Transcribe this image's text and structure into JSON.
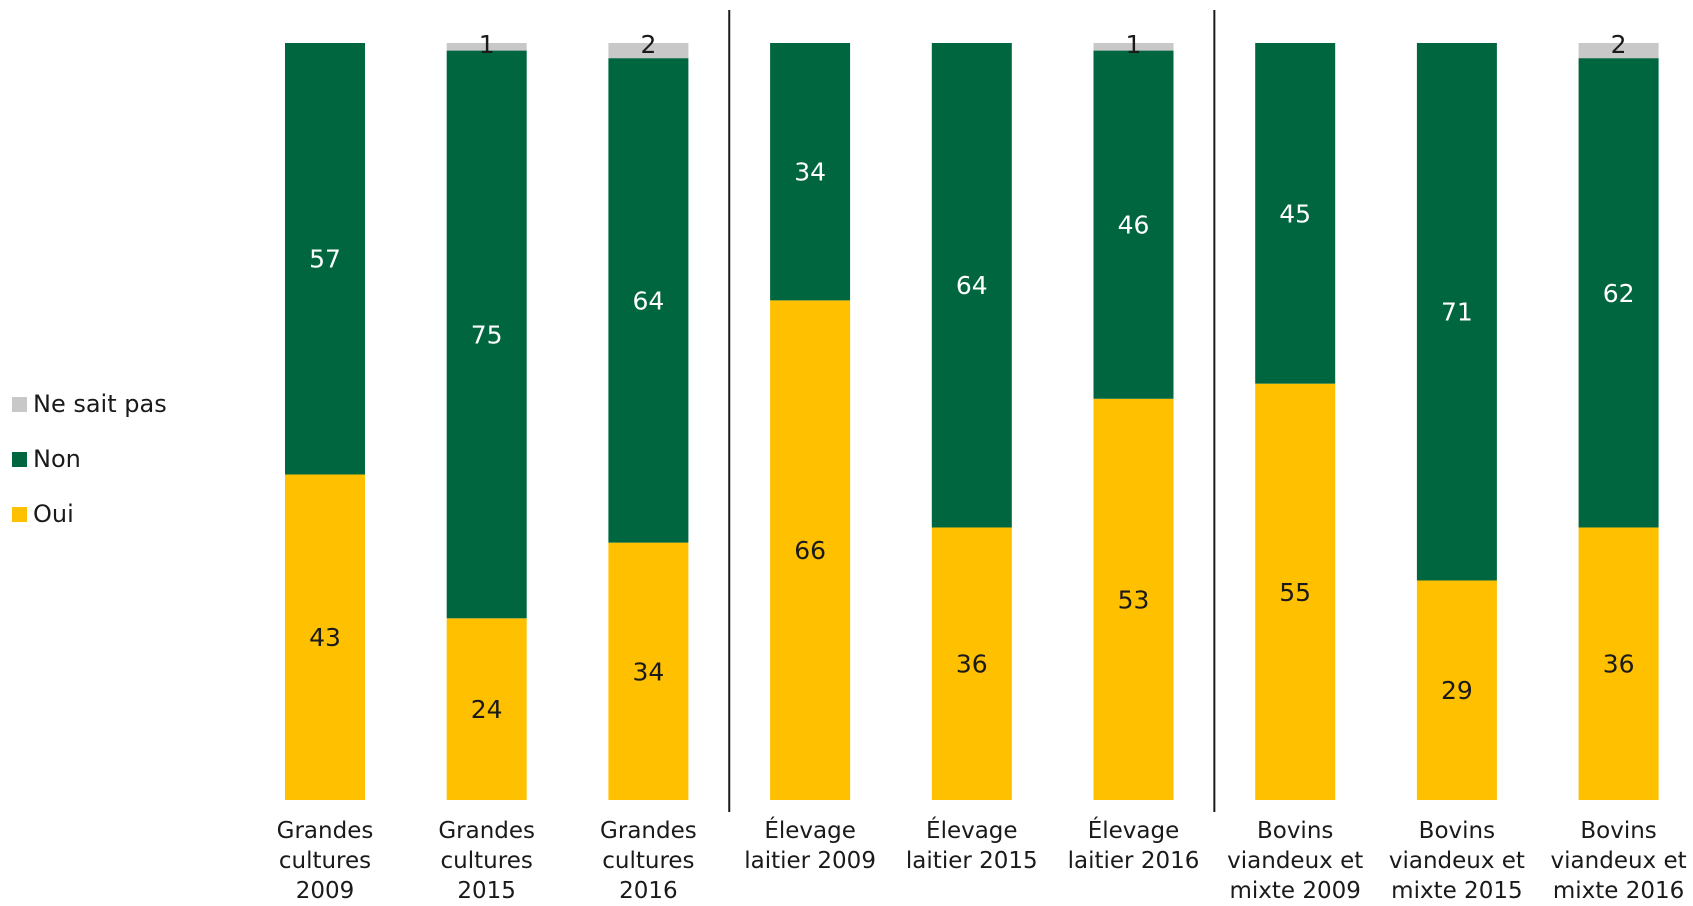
{
  "chart_data": {
    "type": "bar",
    "stacked": true,
    "ylim": [
      0,
      100
    ],
    "grid": false,
    "legend_position": "left",
    "categories": [
      [
        "Grandes",
        "cultures",
        "2009"
      ],
      [
        "Grandes",
        "cultures",
        "2015"
      ],
      [
        "Grandes",
        "cultures",
        "2016"
      ],
      [
        "Élevage",
        "laitier 2009"
      ],
      [
        "Élevage",
        "laitier 2015"
      ],
      [
        "Élevage",
        "laitier 2016"
      ],
      [
        "Bovins",
        "viandeux et",
        "mixte 2009"
      ],
      [
        "Bovins",
        "viandeux et",
        "mixte 2015"
      ],
      [
        "Bovins",
        "viandeux et",
        "mixte 2016"
      ]
    ],
    "series": [
      {
        "name": "Oui",
        "color": "#ffc000",
        "label_color": "#1a1a1a",
        "values": [
          43,
          24,
          34,
          66,
          36,
          53,
          55,
          29,
          36
        ]
      },
      {
        "name": "Non",
        "color": "#006640",
        "label_color": "#ffffff",
        "values": [
          57,
          75,
          64,
          34,
          64,
          46,
          45,
          71,
          62
        ]
      },
      {
        "name": "Ne sait pas",
        "color": "#c8c8c8",
        "label_color": "#1a1a1a",
        "values": [
          null,
          1,
          2,
          null,
          null,
          1,
          null,
          null,
          2
        ]
      }
    ],
    "legend_order": [
      "Ne sait pas",
      "Non",
      "Oui"
    ],
    "group_separators_after": [
      2,
      5
    ]
  }
}
